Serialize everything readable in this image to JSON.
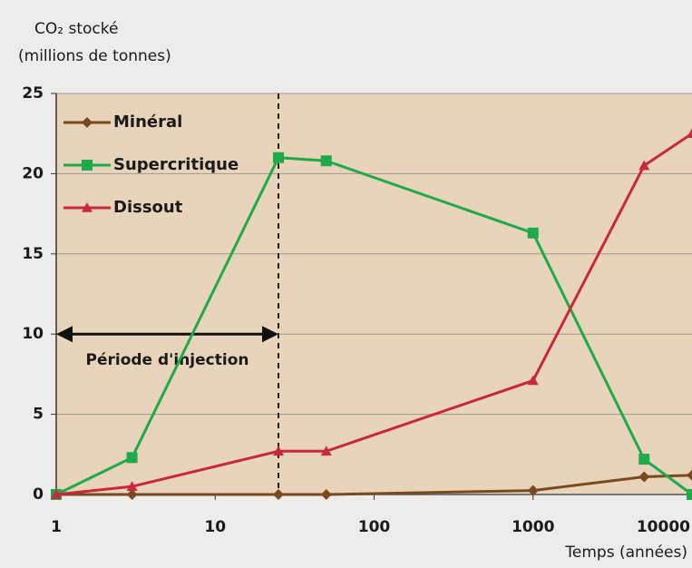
{
  "chart_data": {
    "type": "line",
    "y_label": [
      "CO₂ stocké",
      "(millions de tonnes)"
    ],
    "x_label": "Temps (années)",
    "x_log": true,
    "xlim": [
      1,
      10000
    ],
    "xticks": [
      1,
      10,
      100,
      1000,
      10000
    ],
    "ylim": [
      0,
      25
    ],
    "yticks": [
      0,
      5,
      10,
      15,
      20,
      25
    ],
    "grid": true,
    "legend": "top-left",
    "x": [
      1,
      3,
      25,
      50,
      1000,
      5000,
      10000
    ],
    "series": [
      {
        "name": "Minéral",
        "color": "#7a4a1e",
        "marker": "diamond",
        "values": [
          0,
          0,
          0,
          0,
          0.25,
          1.1,
          1.2
        ]
      },
      {
        "name": "Supercritique",
        "color": "#1faa4a",
        "marker": "square",
        "values": [
          0,
          2.3,
          21,
          20.8,
          16.3,
          2.2,
          0
        ]
      },
      {
        "name": "Dissout",
        "color": "#c8283a",
        "marker": "triangle",
        "values": [
          0,
          0.5,
          2.7,
          2.7,
          7.1,
          20.5,
          22.5
        ]
      }
    ],
    "vline": 25,
    "annotation": {
      "text": "Période d'injection",
      "x": [
        1,
        25
      ],
      "y": 10
    }
  }
}
